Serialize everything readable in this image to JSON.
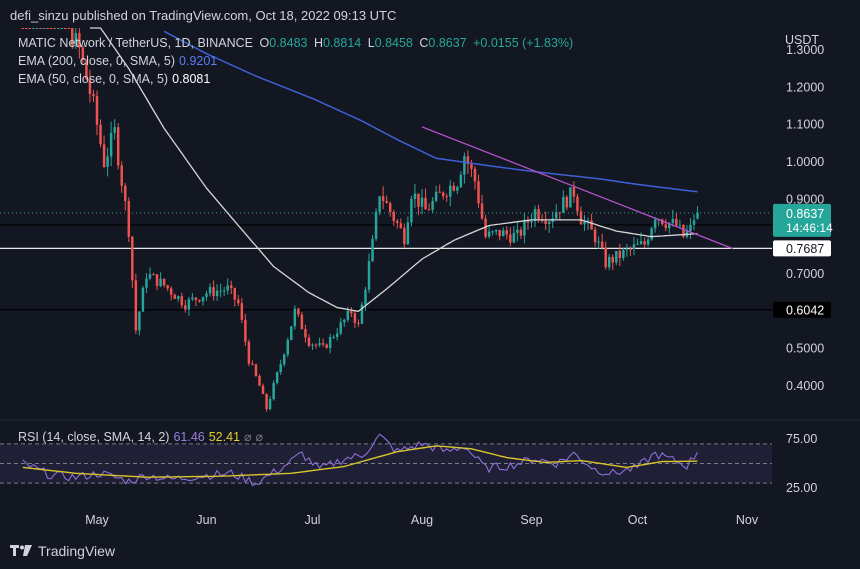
{
  "header": {
    "published_by": "defi_sinzu published on TradingView.com, Oct 18, 2022 09:13 UTC"
  },
  "legend": {
    "symbol": "MATIC Network / TetherUS, 1D, BINANCE",
    "open_label": "O",
    "open": "0.8483",
    "high_label": "H",
    "high": "0.8814",
    "low_label": "L",
    "low": "0.8458",
    "close_label": "C",
    "close": "0.8637",
    "change": "+0.0155 (+1.83%)",
    "ema200_label": "EMA (200, close, 0, SMA, 5)",
    "ema200_value": "0.9201",
    "ema50_label": "EMA (50, close, 0, SMA, 5)",
    "ema50_value": "0.8081"
  },
  "rsi_legend": {
    "label": "RSI (14, close, SMA, 14, 2)",
    "rsi_value": "61.46",
    "sma_value": "52.41"
  },
  "footer": {
    "brand": "TradingView"
  },
  "colors": {
    "background": "#131722",
    "up": "#26a69a",
    "down": "#ef5350",
    "ema200": "#3f5fd6",
    "ema50": "#d6d6d6",
    "trendline": "#b552c9",
    "rsi": "#8e6fd8",
    "rsi_sma": "#d8c52a"
  },
  "chart_data": {
    "type": "candlestick",
    "yunit": "USDT",
    "ylim": [
      0.33,
      1.35
    ],
    "y_ticks": [
      "1.3000",
      "1.2000",
      "1.1000",
      "1.0000",
      "0.9000",
      "0.7000",
      "0.6000",
      "0.5000",
      "0.4000"
    ],
    "x_ticks": [
      {
        "date": "2022-05-01",
        "label": "May"
      },
      {
        "date": "2022-06-01",
        "label": "Jun"
      },
      {
        "date": "2022-07-01",
        "label": "Jul"
      },
      {
        "date": "2022-08-01",
        "label": "Aug"
      },
      {
        "date": "2022-09-01",
        "label": "Sep"
      },
      {
        "date": "2022-10-01",
        "label": "Oct"
      },
      {
        "date": "2022-11-01",
        "label": "Nov"
      }
    ],
    "close_anchors": [
      {
        "date": "2022-04-10",
        "close": 1.5
      },
      {
        "date": "2022-04-20",
        "close": 1.42
      },
      {
        "date": "2022-04-26",
        "close": 1.3
      },
      {
        "date": "2022-04-30",
        "close": 1.15
      },
      {
        "date": "2022-05-03",
        "close": 1.0
      },
      {
        "date": "2022-05-06",
        "close": 1.08
      },
      {
        "date": "2022-05-08",
        "close": 0.95
      },
      {
        "date": "2022-05-10",
        "close": 0.82
      },
      {
        "date": "2022-05-12",
        "close": 0.55
      },
      {
        "date": "2022-05-15",
        "close": 0.7
      },
      {
        "date": "2022-05-20",
        "close": 0.67
      },
      {
        "date": "2022-05-26",
        "close": 0.62
      },
      {
        "date": "2022-06-01",
        "close": 0.65
      },
      {
        "date": "2022-06-07",
        "close": 0.66
      },
      {
        "date": "2022-06-10",
        "close": 0.62
      },
      {
        "date": "2022-06-13",
        "close": 0.47
      },
      {
        "date": "2022-06-16",
        "close": 0.4
      },
      {
        "date": "2022-06-18",
        "close": 0.34
      },
      {
        "date": "2022-06-22",
        "close": 0.46
      },
      {
        "date": "2022-06-26",
        "close": 0.6
      },
      {
        "date": "2022-06-30",
        "close": 0.52
      },
      {
        "date": "2022-07-04",
        "close": 0.5
      },
      {
        "date": "2022-07-08",
        "close": 0.55
      },
      {
        "date": "2022-07-12",
        "close": 0.6
      },
      {
        "date": "2022-07-14",
        "close": 0.56
      },
      {
        "date": "2022-07-18",
        "close": 0.78
      },
      {
        "date": "2022-07-20",
        "close": 0.92
      },
      {
        "date": "2022-07-24",
        "close": 0.85
      },
      {
        "date": "2022-07-27",
        "close": 0.8
      },
      {
        "date": "2022-07-29",
        "close": 0.92
      },
      {
        "date": "2022-08-02",
        "close": 0.87
      },
      {
        "date": "2022-08-07",
        "close": 0.92
      },
      {
        "date": "2022-08-11",
        "close": 0.95
      },
      {
        "date": "2022-08-13",
        "close": 1.02
      },
      {
        "date": "2022-08-16",
        "close": 0.95
      },
      {
        "date": "2022-08-19",
        "close": 0.8
      },
      {
        "date": "2022-08-23",
        "close": 0.81
      },
      {
        "date": "2022-08-28",
        "close": 0.8
      },
      {
        "date": "2022-09-02",
        "close": 0.87
      },
      {
        "date": "2022-09-06",
        "close": 0.85
      },
      {
        "date": "2022-09-10",
        "close": 0.89
      },
      {
        "date": "2022-09-13",
        "close": 0.92
      },
      {
        "date": "2022-09-15",
        "close": 0.85
      },
      {
        "date": "2022-09-19",
        "close": 0.8
      },
      {
        "date": "2022-09-22",
        "close": 0.73
      },
      {
        "date": "2022-09-26",
        "close": 0.75
      },
      {
        "date": "2022-09-30",
        "close": 0.77
      },
      {
        "date": "2022-10-03",
        "close": 0.78
      },
      {
        "date": "2022-10-06",
        "close": 0.86
      },
      {
        "date": "2022-10-09",
        "close": 0.84
      },
      {
        "date": "2022-10-12",
        "close": 0.83
      },
      {
        "date": "2022-10-14",
        "close": 0.8
      },
      {
        "date": "2022-10-16",
        "close": 0.82
      },
      {
        "date": "2022-10-17",
        "close": 0.85
      },
      {
        "date": "2022-10-18",
        "close": 0.8637
      }
    ],
    "ema200": [
      {
        "date": "2022-05-20",
        "value": 1.35
      },
      {
        "date": "2022-06-01",
        "value": 1.29
      },
      {
        "date": "2022-06-15",
        "value": 1.23
      },
      {
        "date": "2022-07-01",
        "value": 1.17
      },
      {
        "date": "2022-07-15",
        "value": 1.11
      },
      {
        "date": "2022-07-25",
        "value": 1.06
      },
      {
        "date": "2022-08-05",
        "value": 1.01
      },
      {
        "date": "2022-08-20",
        "value": 0.99
      },
      {
        "date": "2022-09-01",
        "value": 0.975
      },
      {
        "date": "2022-09-20",
        "value": 0.955
      },
      {
        "date": "2022-10-01",
        "value": 0.94
      },
      {
        "date": "2022-10-18",
        "value": 0.9201
      }
    ],
    "ema50": [
      {
        "date": "2022-04-29",
        "value": 1.4
      },
      {
        "date": "2022-05-10",
        "value": 1.25
      },
      {
        "date": "2022-05-20",
        "value": 1.09
      },
      {
        "date": "2022-06-01",
        "value": 0.93
      },
      {
        "date": "2022-06-10",
        "value": 0.83
      },
      {
        "date": "2022-06-20",
        "value": 0.72
      },
      {
        "date": "2022-06-30",
        "value": 0.65
      },
      {
        "date": "2022-07-08",
        "value": 0.61
      },
      {
        "date": "2022-07-14",
        "value": 0.6
      },
      {
        "date": "2022-07-22",
        "value": 0.66
      },
      {
        "date": "2022-08-01",
        "value": 0.74
      },
      {
        "date": "2022-08-10",
        "value": 0.79
      },
      {
        "date": "2022-08-20",
        "value": 0.83
      },
      {
        "date": "2022-09-01",
        "value": 0.845
      },
      {
        "date": "2022-09-15",
        "value": 0.845
      },
      {
        "date": "2022-09-25",
        "value": 0.815
      },
      {
        "date": "2022-10-05",
        "value": 0.8
      },
      {
        "date": "2022-10-18",
        "value": 0.8081
      }
    ],
    "trendline": [
      {
        "date": "2022-08-01",
        "value": 1.094
      },
      {
        "date": "2022-10-28",
        "value": 0.768
      }
    ],
    "horizontal_levels": [
      {
        "value": 0.7687,
        "label": "0.7687",
        "style": "white"
      },
      {
        "value": 0.6042,
        "label": "0.6042",
        "style": "black"
      },
      {
        "value": 0.8314,
        "label": "0.8314",
        "style": "dark"
      }
    ],
    "price_marker": {
      "value": 0.8637,
      "label": "0.8637",
      "countdown": "14:46:14"
    },
    "rsi": {
      "ylim": [
        20,
        80
      ],
      "upper": 70,
      "middle": 50,
      "lower": 30,
      "y_ticks": [
        "75.00",
        "25.00"
      ],
      "rsi_anchors": [
        {
          "date": "2022-04-10",
          "value": 50
        },
        {
          "date": "2022-04-18",
          "value": 38
        },
        {
          "date": "2022-04-25",
          "value": 36
        },
        {
          "date": "2022-05-02",
          "value": 40
        },
        {
          "date": "2022-05-10",
          "value": 32
        },
        {
          "date": "2022-05-15",
          "value": 38
        },
        {
          "date": "2022-05-22",
          "value": 34
        },
        {
          "date": "2022-06-01",
          "value": 38
        },
        {
          "date": "2022-06-08",
          "value": 40
        },
        {
          "date": "2022-06-15",
          "value": 30
        },
        {
          "date": "2022-06-22",
          "value": 45
        },
        {
          "date": "2022-06-28",
          "value": 60
        },
        {
          "date": "2022-07-03",
          "value": 44
        },
        {
          "date": "2022-07-10",
          "value": 55
        },
        {
          "date": "2022-07-15",
          "value": 58
        },
        {
          "date": "2022-07-20",
          "value": 78
        },
        {
          "date": "2022-07-25",
          "value": 62
        },
        {
          "date": "2022-08-01",
          "value": 70
        },
        {
          "date": "2022-08-08",
          "value": 62
        },
        {
          "date": "2022-08-13",
          "value": 68
        },
        {
          "date": "2022-08-19",
          "value": 45
        },
        {
          "date": "2022-08-26",
          "value": 48
        },
        {
          "date": "2022-09-02",
          "value": 55
        },
        {
          "date": "2022-09-08",
          "value": 50
        },
        {
          "date": "2022-09-13",
          "value": 60
        },
        {
          "date": "2022-09-19",
          "value": 44
        },
        {
          "date": "2022-09-24",
          "value": 40
        },
        {
          "date": "2022-10-01",
          "value": 46
        },
        {
          "date": "2022-10-06",
          "value": 60
        },
        {
          "date": "2022-10-12",
          "value": 52
        },
        {
          "date": "2022-10-15",
          "value": 48
        },
        {
          "date": "2022-10-18",
          "value": 61.46
        }
      ],
      "sma_anchors": [
        {
          "date": "2022-04-10",
          "value": 46
        },
        {
          "date": "2022-04-25",
          "value": 40
        },
        {
          "date": "2022-05-15",
          "value": 36
        },
        {
          "date": "2022-06-05",
          "value": 37
        },
        {
          "date": "2022-06-25",
          "value": 40
        },
        {
          "date": "2022-07-10",
          "value": 47
        },
        {
          "date": "2022-07-25",
          "value": 62
        },
        {
          "date": "2022-08-05",
          "value": 68
        },
        {
          "date": "2022-08-15",
          "value": 65
        },
        {
          "date": "2022-08-25",
          "value": 56
        },
        {
          "date": "2022-09-05",
          "value": 51
        },
        {
          "date": "2022-09-15",
          "value": 53
        },
        {
          "date": "2022-09-28",
          "value": 46
        },
        {
          "date": "2022-10-08",
          "value": 52
        },
        {
          "date": "2022-10-18",
          "value": 52.41
        }
      ]
    }
  }
}
